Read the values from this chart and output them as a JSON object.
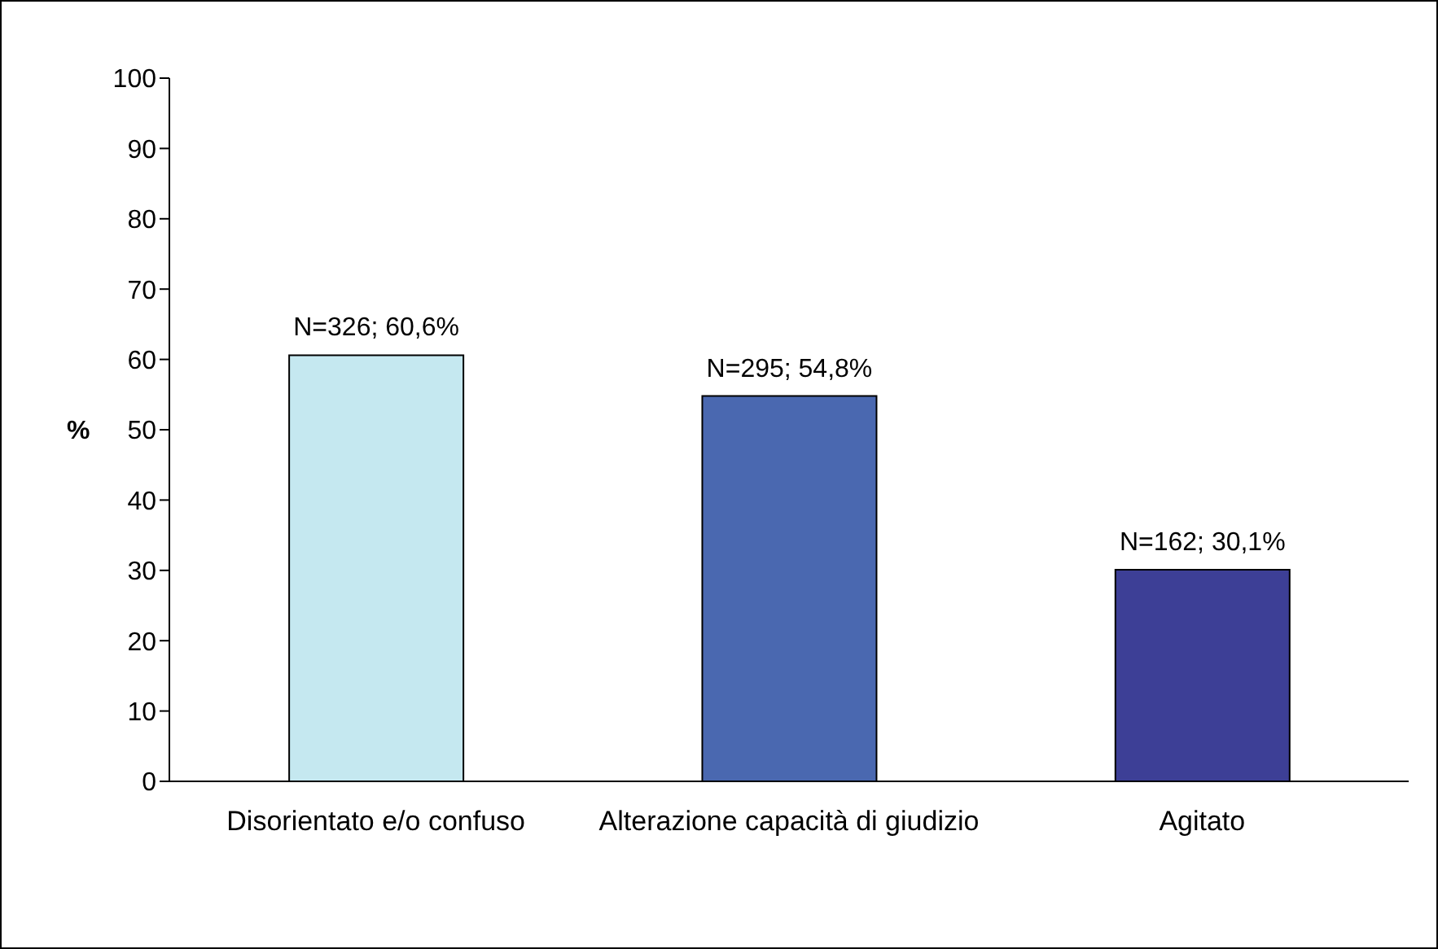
{
  "chart_data": {
    "type": "bar",
    "ylabel": "%",
    "categories": [
      "Disorientato e/o confuso",
      "Alterazione capacità di giudizio",
      "Agitato"
    ],
    "values": [
      60.6,
      54.8,
      30.1
    ],
    "colors": [
      "#c5e8f0",
      "#4a68b0",
      "#3d3f96"
    ],
    "value_labels": [
      "N=326; 60,6%",
      "N=295; 54,8%",
      "N=162; 30,1%"
    ],
    "ylim": [
      0,
      100
    ],
    "yticks": [
      0,
      10,
      20,
      30,
      40,
      50,
      60,
      70,
      80,
      90,
      100
    ],
    "grid": false,
    "legend": false
  }
}
